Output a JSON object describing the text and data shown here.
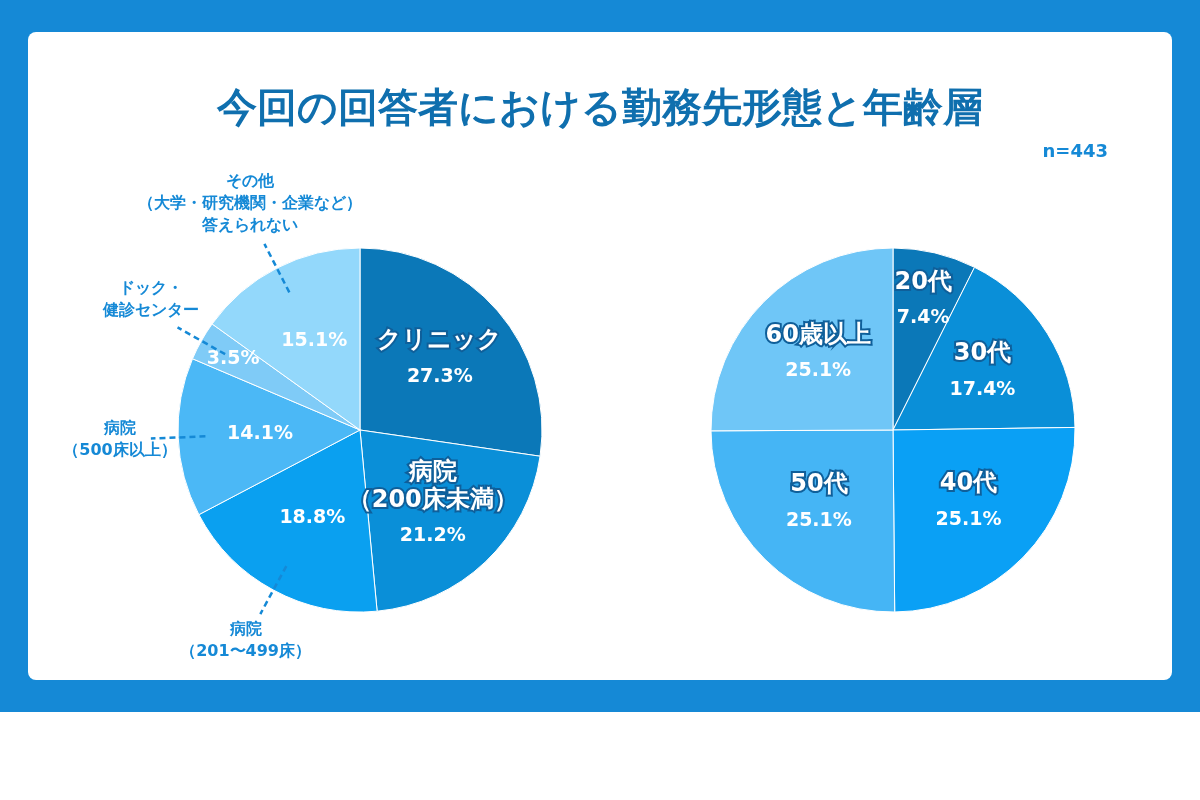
{
  "chart_data": [
    {
      "type": "pie",
      "title": "今回の回答者における勤務先形態と年齢層",
      "categories": [
        "クリニック",
        "病院（200床未満）",
        "病院（201〜499床）",
        "病院（500床以上）",
        "ドック・健診センター",
        "その他（大学・研究機関・企業など）答えられない"
      ],
      "values": [
        27.3,
        21.2,
        18.8,
        14.1,
        3.5,
        15.1
      ],
      "value_labels": [
        "27.3%",
        "21.2%",
        "18.8%",
        "14.1%",
        "3.5%",
        "15.1%"
      ],
      "colors": [
        "#0b78b8",
        "#0a8fd8",
        "#0aa0f0",
        "#4bb8f6",
        "#7fcbf7",
        "#93d8fb"
      ]
    },
    {
      "type": "pie",
      "annotations": [
        "n=443"
      ],
      "categories": [
        "20代",
        "30代",
        "40代",
        "50代",
        "60歳以上"
      ],
      "values": [
        7.4,
        17.4,
        25.1,
        25.1,
        25.1
      ],
      "value_labels": [
        "7.4%",
        "17.4%",
        "25.1%",
        "25.1%",
        "25.1%"
      ],
      "colors": [
        "#0b78b8",
        "#0a8fd8",
        "#0aa0f5",
        "#45b5f5",
        "#6fc6f7"
      ]
    }
  ]
}
